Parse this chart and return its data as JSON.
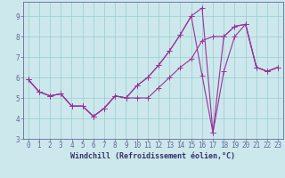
{
  "xlabel": "Windchill (Refroidissement éolien,°C)",
  "background_color": "#cce8ec",
  "plot_bg_color": "#cce8ec",
  "line_color": "#993399",
  "grid_color": "#99cccc",
  "spine_color": "#666699",
  "tick_color": "#333366",
  "xlim": [
    -0.5,
    23.5
  ],
  "ylim": [
    3.0,
    9.7
  ],
  "yticks": [
    3,
    4,
    5,
    6,
    7,
    8,
    9
  ],
  "xticks": [
    0,
    1,
    2,
    3,
    4,
    5,
    6,
    7,
    8,
    9,
    10,
    11,
    12,
    13,
    14,
    15,
    16,
    17,
    18,
    19,
    20,
    21,
    22,
    23
  ],
  "series1_x": [
    0,
    1,
    2,
    3,
    4,
    5,
    6,
    7,
    8,
    9,
    10,
    11,
    12,
    13,
    14,
    15,
    16,
    17,
    18,
    19,
    20,
    21,
    22,
    23
  ],
  "series1_y": [
    5.9,
    5.3,
    5.1,
    5.2,
    4.6,
    4.6,
    4.1,
    4.5,
    5.1,
    5.0,
    5.0,
    5.0,
    5.5,
    6.0,
    6.5,
    6.9,
    7.8,
    8.0,
    8.0,
    8.5,
    8.6,
    6.5,
    6.3,
    6.5
  ],
  "series2_x": [
    0,
    1,
    2,
    3,
    4,
    5,
    6,
    7,
    8,
    9,
    10,
    11,
    12,
    13,
    14,
    15,
    16,
    17,
    18,
    19,
    20,
    21,
    22,
    23
  ],
  "series2_y": [
    5.9,
    5.3,
    5.1,
    5.2,
    4.6,
    4.6,
    4.1,
    4.5,
    5.1,
    5.0,
    5.6,
    6.0,
    6.6,
    7.3,
    8.1,
    9.0,
    6.1,
    3.3,
    6.3,
    8.0,
    8.6,
    6.5,
    6.3,
    6.5
  ],
  "series3_x": [
    0,
    1,
    2,
    3,
    4,
    5,
    6,
    7,
    8,
    9,
    10,
    11,
    12,
    13,
    14,
    15,
    16,
    17,
    18,
    19,
    20,
    21,
    22,
    23
  ],
  "series3_y": [
    5.9,
    5.3,
    5.1,
    5.2,
    4.6,
    4.6,
    4.1,
    4.5,
    5.1,
    5.0,
    5.6,
    6.0,
    6.6,
    7.3,
    8.1,
    9.0,
    9.4,
    3.3,
    8.0,
    8.5,
    8.6,
    6.5,
    6.3,
    6.5
  ],
  "marker_size": 4,
  "line_width": 0.8,
  "xlabel_fontsize": 6,
  "tick_fontsize": 5.5
}
